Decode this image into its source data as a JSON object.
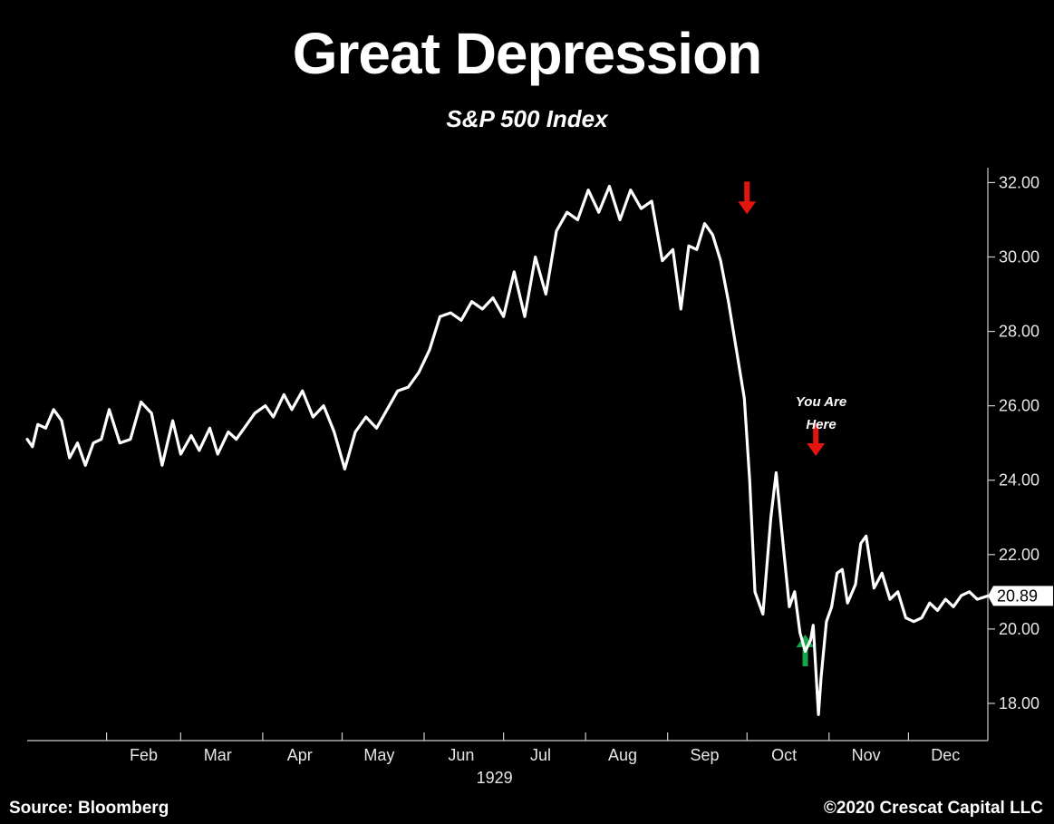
{
  "chart_data": {
    "type": "line",
    "title": "Great Depression",
    "subtitle": "S&P 500 Index",
    "xlabel": "",
    "ylabel": "",
    "year_label": "1929",
    "x_tick_labels": [
      "Feb",
      "Mar",
      "Apr",
      "May",
      "Jun",
      "Jul",
      "Aug",
      "Sep",
      "Oct",
      "Nov",
      "Dec"
    ],
    "y_tick_labels": [
      "32.00",
      "30.00",
      "28.00",
      "26.00",
      "24.00",
      "22.00",
      "20.00",
      "18.00"
    ],
    "ylim": [
      17.0,
      32.4
    ],
    "xlim": [
      "1929-01-02",
      "1929-12-31"
    ],
    "grid": false,
    "legend": "none",
    "last_value_label": "20.89",
    "series": [
      {
        "x": [
          "1929-01-02",
          "1929-01-04",
          "1929-01-06",
          "1929-01-09",
          "1929-01-12",
          "1929-01-15",
          "1929-01-18",
          "1929-01-21",
          "1929-01-24",
          "1929-01-27",
          "1929-01-30",
          "1929-02-02",
          "1929-02-06",
          "1929-02-10",
          "1929-02-14",
          "1929-02-18",
          "1929-02-22",
          "1929-02-26",
          "1929-03-01",
          "1929-03-05",
          "1929-03-08",
          "1929-03-12",
          "1929-03-15",
          "1929-03-19",
          "1929-03-22",
          "1929-03-26",
          "1929-03-29",
          "1929-04-02",
          "1929-04-05",
          "1929-04-09",
          "1929-04-12",
          "1929-04-16",
          "1929-04-20",
          "1929-04-24",
          "1929-04-28",
          "1929-05-02",
          "1929-05-06",
          "1929-05-10",
          "1929-05-14",
          "1929-05-18",
          "1929-05-22",
          "1929-05-26",
          "1929-05-30",
          "1929-06-03",
          "1929-06-07",
          "1929-06-11",
          "1929-06-15",
          "1929-06-19",
          "1929-06-23",
          "1929-06-27",
          "1929-07-01",
          "1929-07-05",
          "1929-07-09",
          "1929-07-13",
          "1929-07-17",
          "1929-07-21",
          "1929-07-25",
          "1929-07-29",
          "1929-08-02",
          "1929-08-06",
          "1929-08-10",
          "1929-08-14",
          "1929-08-18",
          "1929-08-22",
          "1929-08-26",
          "1929-08-30",
          "1929-09-03",
          "1929-09-06",
          "1929-09-09",
          "1929-09-12",
          "1929-09-15",
          "1929-09-18",
          "1929-09-21",
          "1929-09-24",
          "1929-09-27",
          "1929-09-30",
          "1929-10-02",
          "1929-10-04",
          "1929-10-07",
          "1929-10-10",
          "1929-10-12",
          "1929-10-15",
          "1929-10-17",
          "1929-10-19",
          "1929-10-21",
          "1929-10-23",
          "1929-10-25",
          "1929-10-26",
          "1929-10-28",
          "1929-10-29",
          "1929-10-31",
          "1929-11-02",
          "1929-11-04",
          "1929-11-06",
          "1929-11-08",
          "1929-11-11",
          "1929-11-13",
          "1929-11-15",
          "1929-11-18",
          "1929-11-21",
          "1929-11-24",
          "1929-11-27",
          "1929-11-30",
          "1929-12-03",
          "1929-12-06",
          "1929-12-09",
          "1929-12-12",
          "1929-12-15",
          "1929-12-18",
          "1929-12-21",
          "1929-12-24",
          "1929-12-27",
          "1929-12-31"
        ],
        "y": [
          25.1,
          24.9,
          25.5,
          25.4,
          25.9,
          25.6,
          24.6,
          25.0,
          24.4,
          25.0,
          25.1,
          25.9,
          25.0,
          25.1,
          26.1,
          25.8,
          24.4,
          25.6,
          24.7,
          25.2,
          24.8,
          25.4,
          24.7,
          25.3,
          25.1,
          25.5,
          25.8,
          26.0,
          25.7,
          26.3,
          25.9,
          26.4,
          25.7,
          26.0,
          25.3,
          24.3,
          25.3,
          25.7,
          25.4,
          25.9,
          26.4,
          26.5,
          26.9,
          27.5,
          28.4,
          28.5,
          28.3,
          28.8,
          28.6,
          28.9,
          28.4,
          29.6,
          28.4,
          30.0,
          29.0,
          30.7,
          31.2,
          31.0,
          31.8,
          31.2,
          31.9,
          31.0,
          31.8,
          31.3,
          31.5,
          29.9,
          30.2,
          28.6,
          30.3,
          30.2,
          30.9,
          30.6,
          29.9,
          28.8,
          27.5,
          26.2,
          24.0,
          21.0,
          20.4,
          23.0,
          24.2,
          22.0,
          20.6,
          21.0,
          19.9,
          19.4,
          19.7,
          20.1,
          17.7,
          18.7,
          20.2,
          20.6,
          21.5,
          21.6,
          20.7,
          21.2,
          22.3,
          22.5,
          21.1,
          21.5,
          20.8,
          21.0,
          20.3,
          20.2,
          20.3,
          20.7,
          20.5,
          20.8,
          20.6,
          20.9,
          21.0,
          20.8,
          20.89
        ]
      }
    ],
    "annotations": [
      {
        "kind": "arrow",
        "direction": "down",
        "color": "#e3160f",
        "date": "1929-10-01",
        "value": 31.15
      },
      {
        "kind": "arrow",
        "direction": "down",
        "color": "#e3160f",
        "date": "1929-10-27",
        "value": 24.65
      },
      {
        "kind": "arrow",
        "direction": "up",
        "color": "#16a64a",
        "date": "1929-10-23",
        "value": 19.85
      },
      {
        "kind": "text",
        "lines": [
          "You Are",
          "Here"
        ],
        "date": "1929-10-29",
        "value": 25.5
      }
    ]
  },
  "footer": {
    "source": "Source: Bloomberg",
    "copyright": "©2020 Crescat Capital LLC"
  },
  "colors": {
    "background": "#000000",
    "line": "#ffffff",
    "axis": "#cccccc",
    "down_arrow": "#e3160f",
    "up_arrow": "#16a64a"
  }
}
